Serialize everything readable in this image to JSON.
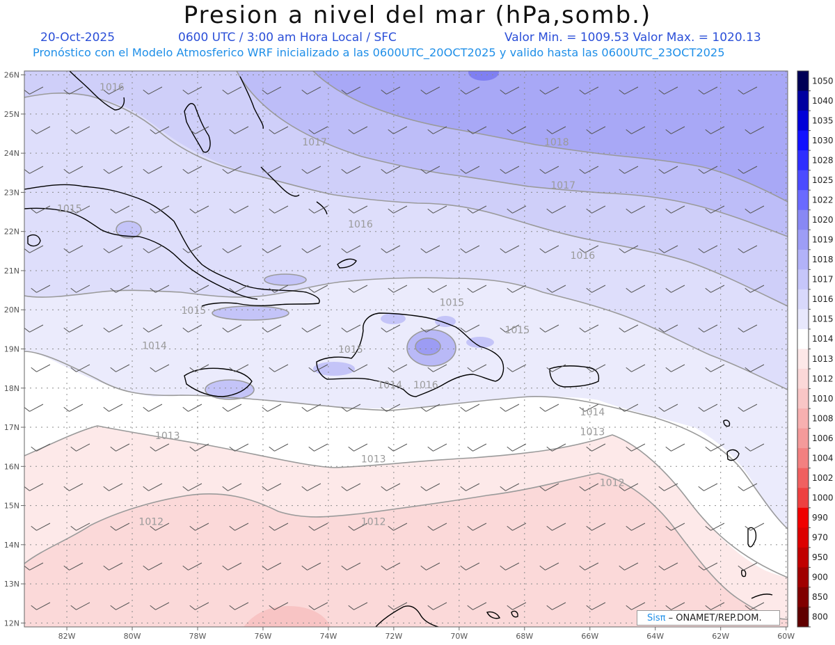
{
  "header": {
    "title": "Presion a nivel del mar (hPa,somb.)",
    "date": "20-Oct-2025",
    "time": "0600 UTC / 3:00 am Hora Local / SFC",
    "min_max": "Valor Min. = 1009.53  Valor Max. = 1020.13",
    "forecast_line": "Pronóstico con el Modelo Atmosferico WRF inicializado a las 0600UTC_20OCT2025 y valido hasta las  0600UTC_23OCT2025"
  },
  "axes": {
    "lon_labels": [
      "82W",
      "80W",
      "78W",
      "76W",
      "74W",
      "72W",
      "70W",
      "68W",
      "66W",
      "64W",
      "62W",
      "60W"
    ],
    "lat_labels": [
      "26N",
      "25N",
      "24N",
      "23N",
      "22N",
      "21N",
      "20N",
      "19N",
      "18N",
      "17N",
      "16N",
      "15N",
      "14N",
      "13N",
      "12N"
    ]
  },
  "contour_labels": [
    {
      "text": "1016",
      "lon": -81.0,
      "lat": 25.6
    },
    {
      "text": "1017",
      "lon": -74.8,
      "lat": 24.2
    },
    {
      "text": "1018",
      "lon": -67.4,
      "lat": 24.2
    },
    {
      "text": "1017",
      "lon": -67.2,
      "lat": 23.1
    },
    {
      "text": "1016",
      "lon": -73.4,
      "lat": 22.1
    },
    {
      "text": "1015",
      "lon": -82.3,
      "lat": 22.5
    },
    {
      "text": "1016",
      "lon": -66.6,
      "lat": 21.3
    },
    {
      "text": "1015",
      "lon": -78.5,
      "lat": 19.9
    },
    {
      "text": "1015",
      "lon": -70.6,
      "lat": 20.1
    },
    {
      "text": "1015",
      "lon": -68.6,
      "lat": 19.4
    },
    {
      "text": "1014",
      "lon": -79.7,
      "lat": 19.0
    },
    {
      "text": "1015",
      "lon": -73.7,
      "lat": 18.9
    },
    {
      "text": "1014",
      "lon": -72.5,
      "lat": 18.0
    },
    {
      "text": "1016",
      "lon": -71.4,
      "lat": 18.0
    },
    {
      "text": "1014",
      "lon": -66.3,
      "lat": 17.3
    },
    {
      "text": "1013",
      "lon": -79.3,
      "lat": 16.7
    },
    {
      "text": "1013",
      "lon": -66.3,
      "lat": 16.8
    },
    {
      "text": "1013",
      "lon": -73.0,
      "lat": 16.1
    },
    {
      "text": "1012",
      "lon": -65.7,
      "lat": 15.5
    },
    {
      "text": "1012",
      "lon": -79.8,
      "lat": 14.5
    },
    {
      "text": "1012",
      "lon": -73.0,
      "lat": 14.5
    }
  ],
  "colorbar": {
    "labels": [
      "1050",
      "1040",
      "1035",
      "1030",
      "1028",
      "1025",
      "1022",
      "1020",
      "1019",
      "1018",
      "1017",
      "1016",
      "1015",
      "1014",
      "1013",
      "1012",
      "1010",
      "1008",
      "1006",
      "1004",
      "1002",
      "1000",
      "990",
      "970",
      "950",
      "900",
      "850",
      "800"
    ],
    "colors": [
      "#000055",
      "#0000a0",
      "#0000d8",
      "#1111ff",
      "#2e2eff",
      "#4b4bff",
      "#6a6aff",
      "#8888f4",
      "#9d9df6",
      "#b2b2f8",
      "#c6c6fa",
      "#d8d8fb",
      "#e8e8fc",
      "#ffffff",
      "#fde8e8",
      "#fbd8d8",
      "#f9c6c6",
      "#f7b0b0",
      "#f49a9a",
      "#f28080",
      "#f06060",
      "#ee4040",
      "#f00000",
      "#dc0000",
      "#c00000",
      "#a00000",
      "#800000",
      "#600000"
    ]
  },
  "credit": {
    "logo": "Sisπ",
    "text": " – ONAMET/REP.DOM."
  },
  "colors": {
    "header_blue": "#2b4fd8",
    "subheader_blue": "#1f8fe8",
    "coast": "#000000",
    "grid": "#888888",
    "contour": "#999999"
  }
}
